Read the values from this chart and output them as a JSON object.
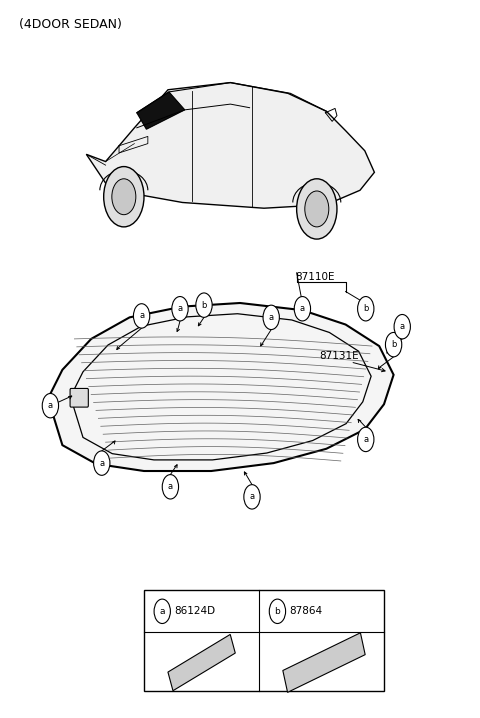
{
  "title": "(4DOOR SEDAN)",
  "title_fontsize": 9,
  "bg_color": "#ffffff",
  "line_color": "#000000",
  "legend_a_label": "86124D",
  "legend_b_label": "87864",
  "part_label_87110E": "87110E",
  "part_label_87131E": "87131E"
}
